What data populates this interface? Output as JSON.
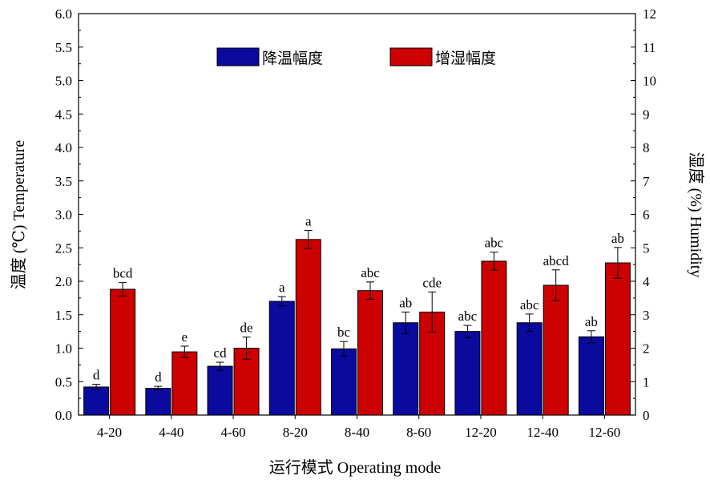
{
  "chart_data": {
    "type": "bar",
    "categories": [
      "4-20",
      "4-40",
      "4-60",
      "8-20",
      "8-40",
      "8-60",
      "12-20",
      "12-40",
      "12-60"
    ],
    "xlabel": "运行模式 Operating mode",
    "ylabel": "温度 (℃) Temperature",
    "y2label": "湿度 (%) Humidity",
    "ylim": [
      0,
      6.0
    ],
    "y2lim": [
      0,
      12
    ],
    "yticks": [
      "0.0",
      "0.5",
      "1.0",
      "1.5",
      "2.0",
      "2.5",
      "3.0",
      "3.5",
      "4.0",
      "4.5",
      "5.0",
      "5.5",
      "6.0"
    ],
    "y2ticks": [
      "0",
      "1",
      "2",
      "3",
      "4",
      "5",
      "6",
      "7",
      "8",
      "9",
      "10",
      "11",
      "12"
    ],
    "legend_position": "top-center",
    "series": [
      {
        "name": "降温幅度",
        "axis": "left",
        "color": "#0a0a9e",
        "values": [
          0.42,
          0.4,
          0.73,
          1.7,
          0.99,
          1.38,
          1.25,
          1.38,
          1.17
        ],
        "errors": [
          0.04,
          0.03,
          0.06,
          0.07,
          0.11,
          0.16,
          0.09,
          0.13,
          0.09
        ],
        "labels": [
          "d",
          "d",
          "cd",
          "a",
          "bc",
          "ab",
          "abc",
          "abc",
          "ab"
        ]
      },
      {
        "name": "增湿幅度",
        "axis": "right",
        "color": "#cc0000",
        "values": [
          3.76,
          1.89,
          2.0,
          5.25,
          3.72,
          3.08,
          4.6,
          3.88,
          4.55
        ],
        "errors": [
          0.2,
          0.17,
          0.33,
          0.27,
          0.26,
          0.6,
          0.27,
          0.46,
          0.46
        ],
        "labels": [
          "bcd",
          "e",
          "de",
          "a",
          "abc",
          "cde",
          "abc",
          "abcd",
          "ab"
        ]
      }
    ]
  }
}
